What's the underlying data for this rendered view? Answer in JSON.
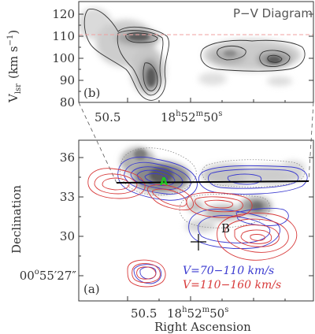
{
  "figure": {
    "panel_b": {
      "panel_label": "(b)",
      "title": "P−V Diagram",
      "ylabel": "V",
      "ylabel_sub": "lsr",
      "ylabel_unit": "(km s",
      "ylabel_unit_sup": "−1",
      "ylabel_unit_close": ")",
      "yticks": [
        "80",
        "90",
        "100",
        "110",
        "120"
      ],
      "xtick_left": "50.5",
      "xtick_main": "18",
      "xtick_h": "h",
      "xtick_mid": "52",
      "xtick_m": "m",
      "xtick_end": "50",
      "xtick_s": "s",
      "ref_line_velocity": 110
    },
    "panel_a": {
      "panel_label": "(a)",
      "ylabel": "Declination",
      "xlabel": "Right Ascension",
      "yticks": [
        "36",
        "33",
        "30"
      ],
      "ytick_bottom_main": "00",
      "ytick_bottom_deg": "o",
      "ytick_bottom_rest": "55′27″",
      "xtick_left": "50.5",
      "xtick_main": "18",
      "xtick_h": "h",
      "xtick_mid": "52",
      "xtick_m": "m",
      "xtick_end": "50",
      "xtick_s": "s",
      "label_A": "A",
      "label_B": "B",
      "legend_blue": "V=70−110 km/s",
      "legend_red": "V=110−160 km/s"
    },
    "colors": {
      "blue": "#3a3ad0",
      "red": "#d83a3a",
      "green": "#1ec81e",
      "ref_line": "#f0a0a0"
    }
  }
}
